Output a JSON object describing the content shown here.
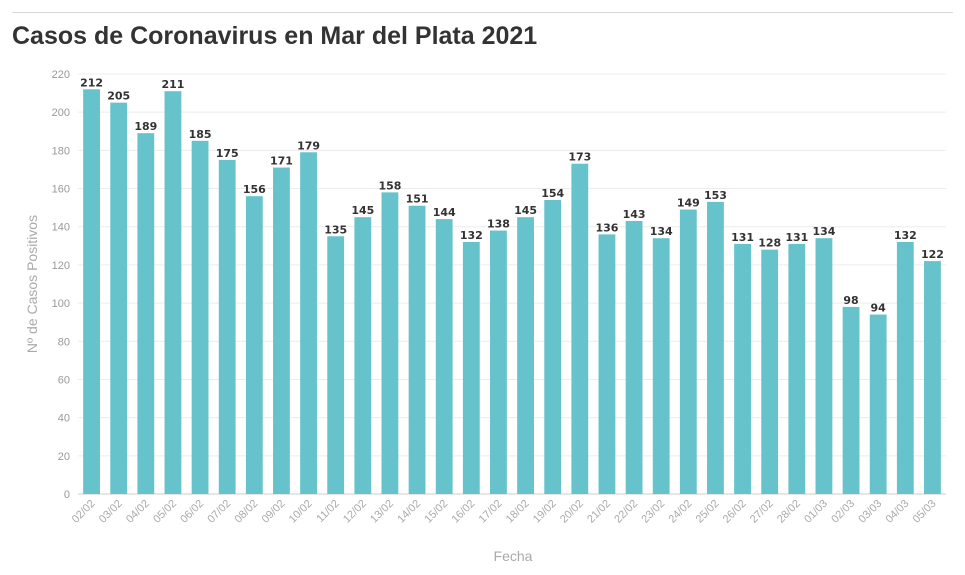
{
  "chart_data": {
    "type": "bar",
    "title": "Casos de Coronavirus en Mar del Plata 2021",
    "xlabel": "Fecha",
    "ylabel": "Nº de Casos Positivos",
    "ylim": [
      0,
      220
    ],
    "yticks": [
      0,
      20,
      40,
      60,
      80,
      100,
      120,
      140,
      160,
      180,
      200,
      220
    ],
    "grid": true,
    "bar_color": "#66c3cc",
    "categories": [
      "02/02",
      "03/02",
      "04/02",
      "05/02",
      "06/02",
      "07/02",
      "08/02",
      "09/02",
      "10/02",
      "11/02",
      "12/02",
      "13/02",
      "14/02",
      "15/02",
      "16/02",
      "17/02",
      "18/02",
      "19/02",
      "20/02",
      "21/02",
      "22/02",
      "23/02",
      "24/02",
      "25/02",
      "26/02",
      "27/02",
      "28/02",
      "01/03",
      "02/03",
      "03/03",
      "04/03",
      "05/03"
    ],
    "values": [
      212,
      205,
      189,
      211,
      185,
      175,
      156,
      171,
      179,
      135,
      145,
      158,
      151,
      144,
      132,
      138,
      145,
      154,
      173,
      136,
      143,
      134,
      149,
      153,
      131,
      128,
      131,
      134,
      98,
      94,
      132,
      122
    ]
  }
}
